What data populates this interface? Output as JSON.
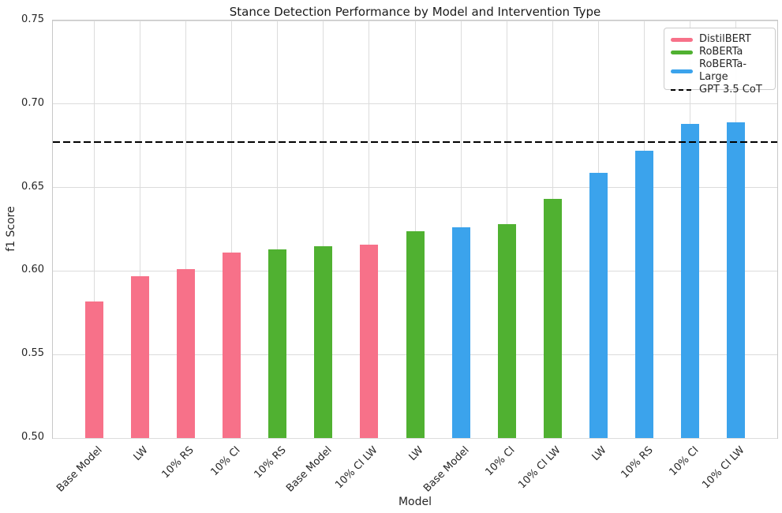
{
  "figure": {
    "title": "Stance Detection Performance by Model and Intervention Type",
    "xlabel": "Model",
    "ylabel": "f1 Score"
  },
  "legend": {
    "entries": [
      {
        "label": "DistilBERT",
        "color": "#f77189",
        "style": "solid"
      },
      {
        "label": "RoBERTa",
        "color": "#50b131",
        "style": "solid"
      },
      {
        "label": "RoBERTa-Large",
        "color": "#3ba3ec",
        "style": "solid"
      },
      {
        "label": "GPT 3.5 CoT",
        "color": "#000000",
        "style": "dashed"
      }
    ]
  },
  "chart_data": {
    "type": "bar",
    "title": "Stance Detection Performance by Model and Intervention Type",
    "xlabel": "Model",
    "ylabel": "f1 Score",
    "ylim": [
      0.5,
      0.75
    ],
    "yticks": [
      0.5,
      0.55,
      0.6,
      0.65,
      0.7,
      0.75
    ],
    "ytick_labels": [
      "0.50",
      "0.55",
      "0.60",
      "0.65",
      "0.70",
      "0.75"
    ],
    "grid": true,
    "legend_position": "upper right",
    "series_colors": {
      "DistilBERT": "#f77189",
      "RoBERTa": "#50b131",
      "RoBERTa-Large": "#3ba3ec"
    },
    "bars": [
      {
        "category": "Base Model",
        "series": "DistilBERT",
        "value": 0.582
      },
      {
        "category": "LW",
        "series": "DistilBERT",
        "value": 0.597
      },
      {
        "category": "10% RS",
        "series": "DistilBERT",
        "value": 0.601
      },
      {
        "category": "10% CI",
        "series": "DistilBERT",
        "value": 0.611
      },
      {
        "category": "10% RS",
        "series": "RoBERTa",
        "value": 0.613
      },
      {
        "category": "Base Model",
        "series": "RoBERTa",
        "value": 0.615
      },
      {
        "category": "10% CI LW",
        "series": "DistilBERT",
        "value": 0.616
      },
      {
        "category": "LW",
        "series": "RoBERTa",
        "value": 0.624
      },
      {
        "category": "Base Model",
        "series": "RoBERTa-Large",
        "value": 0.626
      },
      {
        "category": "10% CI",
        "series": "RoBERTa",
        "value": 0.628
      },
      {
        "category": "10% CI LW",
        "series": "RoBERTa",
        "value": 0.643
      },
      {
        "category": "LW",
        "series": "RoBERTa-Large",
        "value": 0.659
      },
      {
        "category": "10% RS",
        "series": "RoBERTa-Large",
        "value": 0.672
      },
      {
        "category": "10% CI",
        "series": "RoBERTa-Large",
        "value": 0.688
      },
      {
        "category": "10% CI LW",
        "series": "RoBERTa-Large",
        "value": 0.689
      }
    ],
    "reference_line": {
      "label": "GPT 3.5 CoT",
      "value": 0.677,
      "color": "#000000",
      "style": "dashed"
    }
  }
}
